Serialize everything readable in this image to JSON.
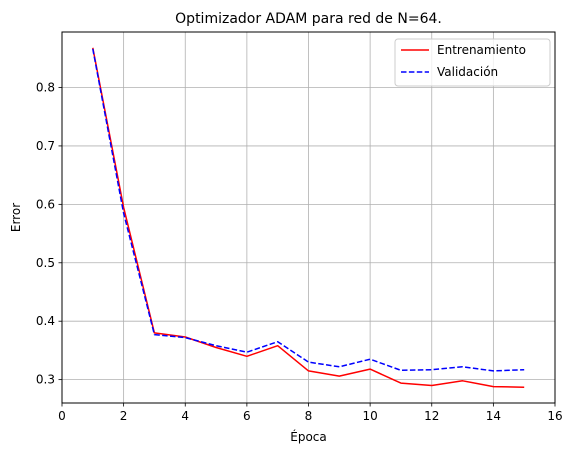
{
  "chart_data": {
    "type": "line",
    "title": "Optimizador ADAM para red de N=64.",
    "xlabel": "Época",
    "ylabel": "Error",
    "xlim": [
      0,
      16
    ],
    "ylim": [
      0.26,
      0.895
    ],
    "xticks": [
      0,
      2,
      4,
      6,
      8,
      10,
      12,
      14,
      16
    ],
    "yticks": [
      0.3,
      0.4,
      0.5,
      0.6,
      0.7,
      0.8
    ],
    "grid": true,
    "legend_position": "top-right",
    "x": [
      1,
      2,
      3,
      4,
      5,
      6,
      7,
      8,
      9,
      10,
      11,
      12,
      13,
      14,
      15
    ],
    "series": [
      {
        "name": "Entrenamiento",
        "color": "#ff0000",
        "style": "solid",
        "values": [
          0.868,
          0.595,
          0.38,
          0.373,
          0.355,
          0.34,
          0.358,
          0.315,
          0.306,
          0.318,
          0.294,
          0.29,
          0.298,
          0.288,
          0.287
        ]
      },
      {
        "name": "Validación",
        "color": "#0000ff",
        "style": "dashed",
        "values": [
          0.866,
          0.585,
          0.377,
          0.372,
          0.358,
          0.347,
          0.365,
          0.33,
          0.322,
          0.335,
          0.316,
          0.317,
          0.322,
          0.315,
          0.317
        ]
      }
    ]
  }
}
